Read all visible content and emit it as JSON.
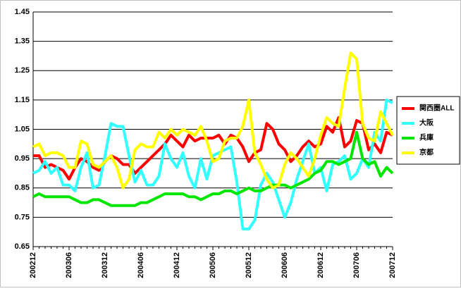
{
  "chart_data": {
    "type": "line",
    "categories": [
      "200212",
      null,
      null,
      null,
      null,
      null,
      "200306",
      null,
      null,
      null,
      null,
      null,
      "200312",
      null,
      null,
      null,
      null,
      null,
      "200406",
      null,
      null,
      null,
      null,
      null,
      "200412",
      null,
      null,
      null,
      null,
      null,
      "200506",
      null,
      null,
      null,
      null,
      null,
      "200512",
      null,
      null,
      null,
      null,
      null,
      "200606",
      null,
      null,
      null,
      null,
      null,
      "200612",
      null,
      null,
      null,
      null,
      null,
      "200706",
      null,
      null,
      null,
      null,
      null,
      "200712"
    ],
    "series": [
      {
        "name": "関西圏ALL",
        "color": "#ff0000",
        "values": [
          0.96,
          0.96,
          0.92,
          0.93,
          0.92,
          0.91,
          0.88,
          0.92,
          0.95,
          0.94,
          0.92,
          0.91,
          0.94,
          0.96,
          0.95,
          0.93,
          0.93,
          0.9,
          0.92,
          0.94,
          0.96,
          0.98,
          1.0,
          1.03,
          1.01,
          0.99,
          1.03,
          1.01,
          1.02,
          1.02,
          1.02,
          1.03,
          1.0,
          1.03,
          1.02,
          0.99,
          0.94,
          0.97,
          0.98,
          1.07,
          1.05,
          1.0,
          0.98,
          0.94,
          0.96,
          0.99,
          1.01,
          0.99,
          1.0,
          1.06,
          1.04,
          1.09,
          0.99,
          1.01,
          1.08,
          1.07,
          0.98,
          1.0,
          0.97,
          1.04,
          1.03
        ]
      },
      {
        "name": "大阪",
        "color": "#33ffff",
        "values": [
          0.9,
          0.91,
          0.94,
          0.9,
          0.92,
          0.86,
          0.86,
          0.84,
          0.92,
          0.97,
          0.85,
          0.86,
          0.96,
          1.07,
          1.06,
          1.06,
          0.96,
          0.87,
          0.91,
          0.86,
          0.86,
          0.89,
          1.0,
          0.95,
          0.92,
          0.97,
          0.89,
          0.85,
          0.95,
          0.88,
          0.96,
          0.97,
          0.98,
          0.99,
          0.87,
          0.71,
          0.71,
          0.74,
          0.86,
          0.9,
          0.87,
          0.81,
          0.75,
          0.8,
          0.88,
          0.94,
          1.0,
          0.9,
          0.92,
          0.84,
          0.93,
          0.94,
          0.96,
          0.88,
          0.9,
          0.95,
          0.92,
          1.04,
          1.01,
          1.15,
          1.14
        ]
      },
      {
        "name": "兵庫",
        "color": "#00e600",
        "values": [
          0.82,
          0.83,
          0.82,
          0.82,
          0.82,
          0.82,
          0.82,
          0.81,
          0.8,
          0.8,
          0.81,
          0.81,
          0.8,
          0.79,
          0.79,
          0.79,
          0.79,
          0.79,
          0.8,
          0.8,
          0.81,
          0.82,
          0.83,
          0.83,
          0.83,
          0.83,
          0.82,
          0.82,
          0.81,
          0.82,
          0.83,
          0.83,
          0.84,
          0.84,
          0.83,
          0.84,
          0.85,
          0.84,
          0.84,
          0.85,
          0.86,
          0.86,
          0.86,
          0.85,
          0.86,
          0.87,
          0.88,
          0.9,
          0.91,
          0.94,
          0.94,
          0.93,
          0.94,
          0.95,
          1.04,
          0.95,
          0.93,
          0.94,
          0.89,
          0.92,
          0.9
        ]
      },
      {
        "name": "京都",
        "color": "#ffff00",
        "values": [
          0.99,
          1.0,
          0.96,
          0.97,
          0.97,
          0.96,
          0.92,
          0.92,
          1.01,
          1.0,
          0.93,
          0.92,
          0.94,
          0.96,
          0.92,
          0.85,
          0.88,
          0.98,
          1.0,
          0.99,
          0.99,
          1.04,
          1.02,
          1.05,
          1.03,
          1.05,
          1.04,
          1.03,
          1.06,
          1.01,
          0.94,
          0.95,
          1.01,
          1.02,
          1.02,
          1.06,
          1.15,
          0.97,
          0.93,
          0.88,
          0.85,
          0.86,
          0.93,
          0.97,
          0.95,
          0.92,
          0.89,
          0.95,
          1.03,
          1.09,
          1.07,
          1.06,
          1.19,
          1.31,
          1.29,
          1.07,
          1.02,
          1.01,
          1.11,
          1.07,
          1.03
        ]
      }
    ],
    "ylim": [
      0.65,
      1.45
    ],
    "yticks": [
      0.65,
      0.75,
      0.85,
      0.95,
      1.05,
      1.15,
      1.25,
      1.35,
      1.45
    ],
    "grid": true,
    "legend": "right"
  }
}
